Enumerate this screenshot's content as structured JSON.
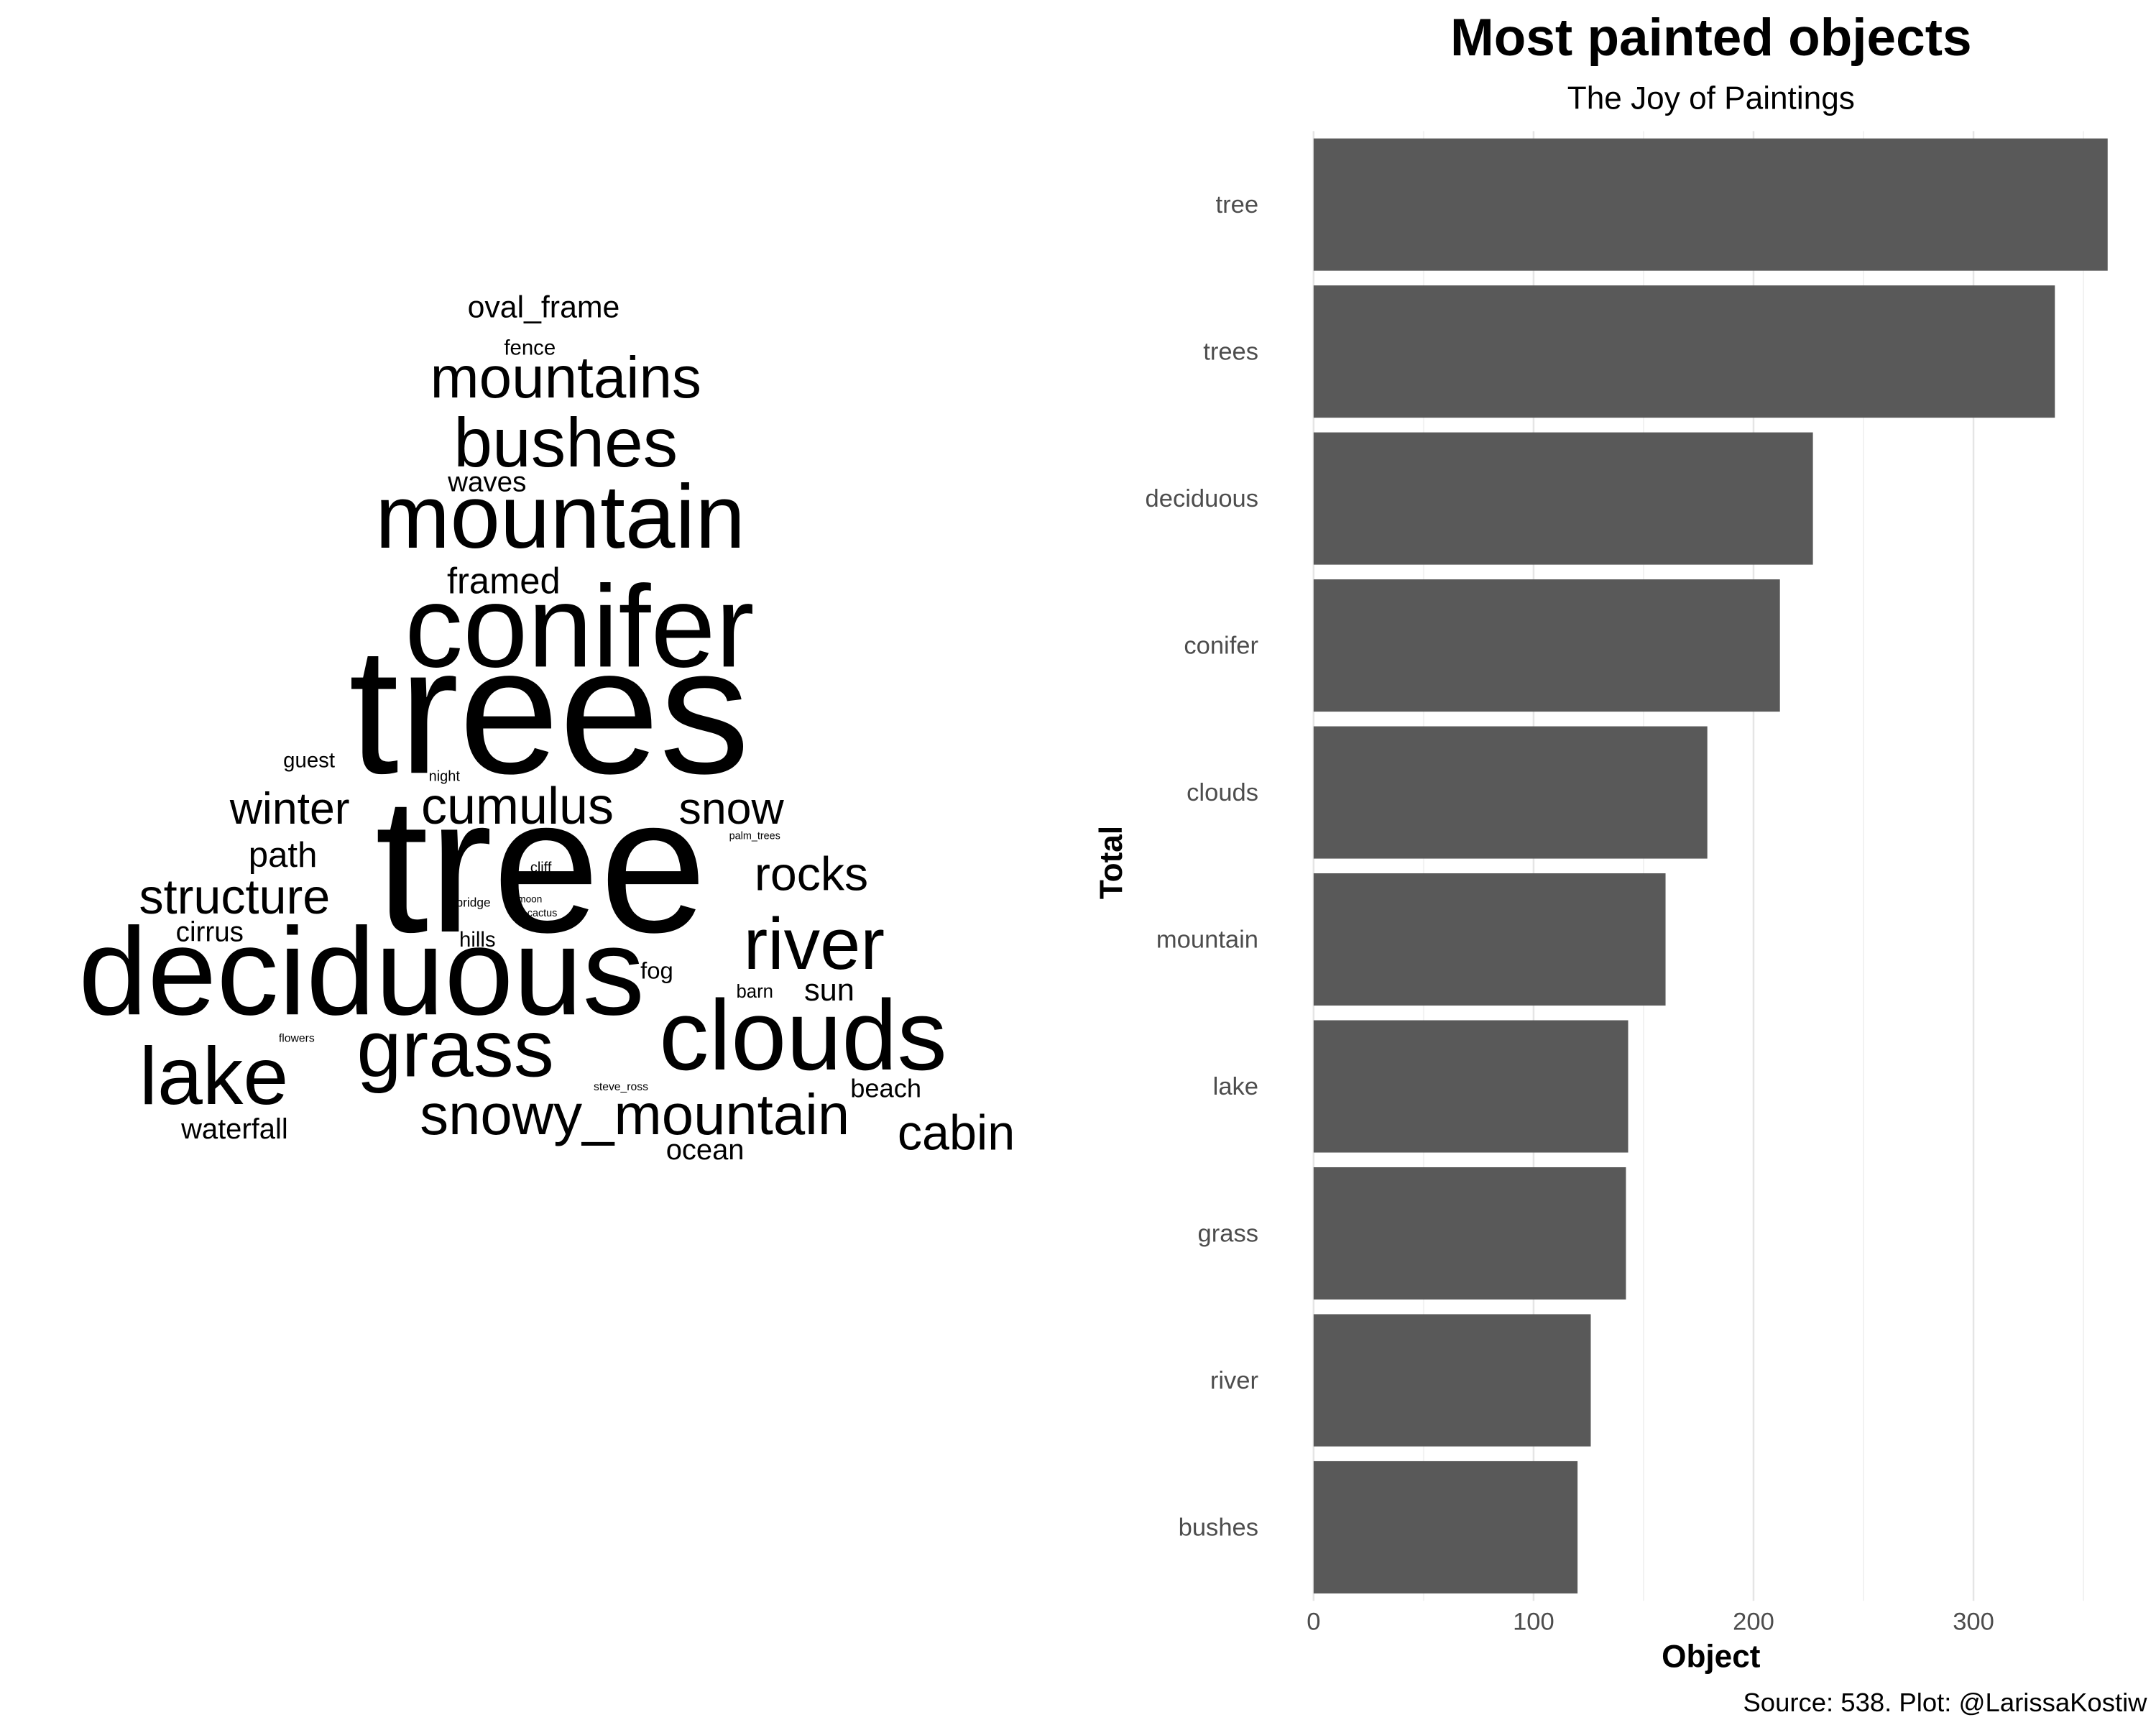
{
  "chart_data": [
    {
      "type": "wordcloud",
      "color": "#000000",
      "words": [
        "trees",
        "tree",
        "conifer",
        "deciduous",
        "clouds",
        "mountain",
        "lake",
        "grass",
        "river",
        "bushes",
        "mountains",
        "snowy_mountain",
        "cabin",
        "rocks",
        "structure",
        "cumulus",
        "snow",
        "winter",
        "path",
        "sun",
        "framed",
        "ocean",
        "waterfall",
        "cirrus",
        "waves",
        "oval_frame",
        "beach",
        "fog",
        "hills",
        "fence",
        "guest",
        "barn",
        "night",
        "cliff",
        "bridge",
        "steve_ross",
        "flowers",
        "palm_trees",
        "cactus",
        "moon"
      ],
      "values": [
        337,
        361,
        212,
        227,
        179,
        160,
        143,
        142,
        126,
        120,
        99,
        96,
        80,
        77,
        80,
        85,
        72,
        72,
        53,
        45,
        55,
        40,
        40,
        38,
        38,
        44,
        35,
        30,
        25,
        25,
        25,
        20,
        12,
        12,
        8,
        6,
        6,
        4,
        4,
        3
      ]
    },
    {
      "type": "bar",
      "orientation": "horizontal",
      "title": "Most painted objects",
      "subtitle": "The Joy of Paintings",
      "xlabel": "Object",
      "ylabel": "Total",
      "caption": "Source: 538. Plot: @LarissaKostiw",
      "categories": [
        "tree",
        "trees",
        "deciduous",
        "conifer",
        "clouds",
        "mountain",
        "lake",
        "grass",
        "river",
        "bushes"
      ],
      "values": [
        361,
        337,
        227,
        212,
        179,
        160,
        143,
        142,
        126,
        120
      ],
      "color": "#595959",
      "xlim": [
        0,
        372
      ],
      "xticks": [
        0,
        100,
        200,
        300
      ],
      "minor_xticks": [
        50,
        150,
        250,
        350
      ],
      "grid": true
    }
  ]
}
